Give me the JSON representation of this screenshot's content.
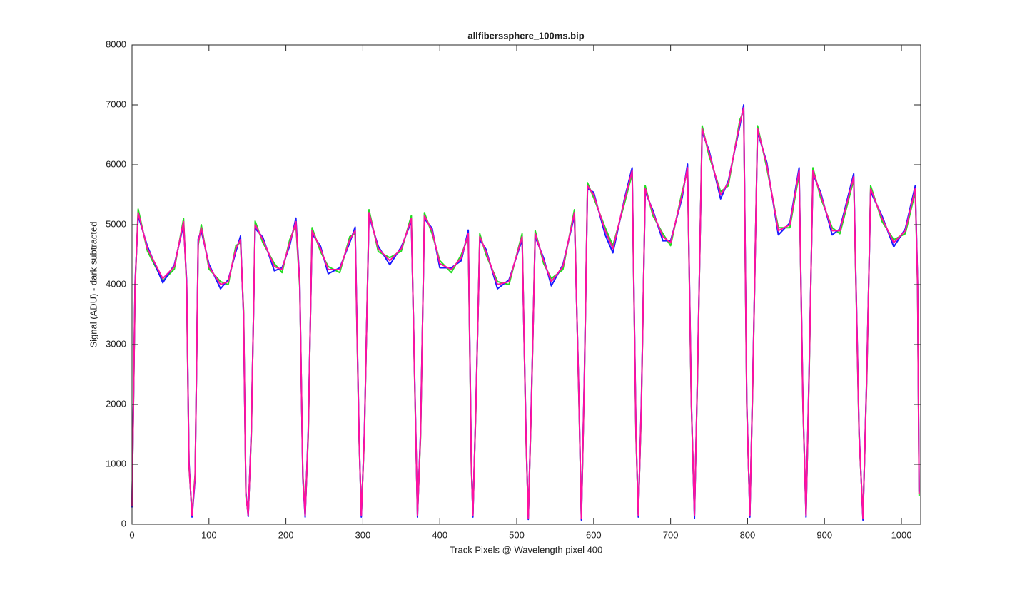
{
  "chart_data": {
    "type": "line",
    "title": "allfiberssphere_100ms.bip",
    "xlabel": "Track Pixels @ Wavelength pixel 400",
    "ylabel": "Signal (ADU) - dark subtracted",
    "xlim": [
      0,
      1025
    ],
    "ylim": [
      0,
      8000
    ],
    "xticks": [
      0,
      100,
      200,
      300,
      400,
      500,
      600,
      700,
      800,
      900,
      1000
    ],
    "yticks": [
      0,
      1000,
      2000,
      3000,
      4000,
      5000,
      6000,
      7000,
      8000
    ],
    "grid": false,
    "x": [
      0,
      4,
      8,
      20,
      40,
      55,
      67,
      71,
      74,
      78,
      82,
      86,
      90,
      100,
      115,
      125,
      135,
      141,
      145,
      148,
      151,
      155,
      160,
      170,
      185,
      195,
      205,
      213,
      218,
      222,
      225,
      229,
      234,
      245,
      255,
      270,
      283,
      290,
      295,
      298,
      302,
      308,
      320,
      335,
      350,
      363,
      368,
      371,
      375,
      380,
      390,
      400,
      415,
      428,
      437,
      441,
      443,
      447,
      452,
      460,
      475,
      490,
      507,
      512,
      515,
      519,
      524,
      535,
      545,
      560,
      575,
      581,
      584,
      588,
      592,
      600,
      615,
      625,
      640,
      650,
      655,
      658,
      662,
      667,
      677,
      690,
      700,
      715,
      722,
      727,
      731,
      735,
      741,
      750,
      765,
      775,
      790,
      795,
      799,
      803,
      807,
      813,
      825,
      840,
      855,
      867,
      872,
      876,
      880,
      885,
      895,
      910,
      920,
      938,
      945,
      950,
      955,
      960,
      975,
      990,
      1005,
      1018,
      1021,
      1023
    ],
    "series": [
      {
        "color": "#22dd22",
        "values": [
          320,
          3950,
          5260,
          4560,
          4060,
          4260,
          5100,
          3950,
          980,
          170,
          830,
          4650,
          5000,
          4260,
          4050,
          4000,
          4650,
          4700,
          3560,
          470,
          170,
          1460,
          5060,
          4700,
          4350,
          4200,
          4750,
          5000,
          3950,
          840,
          180,
          1450,
          4950,
          4550,
          4300,
          4200,
          4800,
          4850,
          1460,
          170,
          1460,
          5250,
          4550,
          4450,
          4560,
          5150,
          1950,
          180,
          1450,
          5200,
          4850,
          4400,
          4200,
          4500,
          4800,
          960,
          170,
          1950,
          4850,
          4500,
          4050,
          4000,
          4850,
          1450,
          130,
          1950,
          4900,
          4350,
          4100,
          4250,
          5250,
          1960,
          130,
          2450,
          5700,
          5450,
          4950,
          4650,
          5350,
          5850,
          1460,
          170,
          1950,
          5650,
          5150,
          4850,
          4650,
          5550,
          5900,
          1960,
          180,
          2450,
          6650,
          6150,
          5550,
          5650,
          6750,
          6900,
          1960,
          170,
          2450,
          6650,
          5950,
          4950,
          4950,
          5850,
          1960,
          180,
          2450,
          5950,
          5450,
          4950,
          4850,
          5750,
          1460,
          130,
          2450,
          5650,
          5050,
          4750,
          4850,
          5550,
          3950,
          470
        ]
      },
      {
        "color": "#1a1aff",
        "values": [
          280,
          4050,
          5150,
          4640,
          4030,
          4330,
          5000,
          4060,
          1050,
          120,
          760,
          4760,
          4900,
          4340,
          3930,
          4080,
          4550,
          4810,
          3450,
          540,
          130,
          1550,
          4940,
          4790,
          4230,
          4280,
          4650,
          5110,
          4040,
          760,
          120,
          1560,
          4850,
          4640,
          4180,
          4280,
          4700,
          4960,
          1540,
          120,
          1550,
          5150,
          4640,
          4330,
          4630,
          5050,
          2060,
          120,
          1560,
          5100,
          4940,
          4280,
          4280,
          4400,
          4910,
          1050,
          120,
          2050,
          4750,
          4590,
          3930,
          4080,
          4750,
          1560,
          80,
          2060,
          4800,
          4440,
          3980,
          4330,
          5150,
          2050,
          70,
          2560,
          5600,
          5540,
          4830,
          4530,
          5430,
          5950,
          1550,
          120,
          2060,
          5550,
          5240,
          4730,
          4730,
          5450,
          6010,
          2050,
          100,
          2560,
          6550,
          6240,
          5430,
          5730,
          6650,
          7000,
          2050,
          120,
          2560,
          6550,
          6040,
          4830,
          5030,
          5950,
          2050,
          120,
          2560,
          5850,
          5540,
          4830,
          4930,
          5850,
          1550,
          70,
          2560,
          5550,
          5140,
          4630,
          4930,
          5650,
          4050,
          540
        ]
      },
      {
        "color": "#ff10a0",
        "values": [
          300,
          4000,
          5200,
          4600,
          4100,
          4300,
          5050,
          4000,
          1000,
          150,
          800,
          4700,
          4950,
          4300,
          4000,
          4050,
          4600,
          4750,
          3500,
          500,
          150,
          1500,
          5000,
          4750,
          4300,
          4250,
          4700,
          5050,
          4000,
          800,
          150,
          1500,
          4900,
          4600,
          4250,
          4250,
          4750,
          4900,
          1500,
          150,
          1500,
          5200,
          4600,
          4400,
          4600,
          5100,
          2000,
          150,
          1500,
          5150,
          4900,
          4350,
          4250,
          4450,
          4850,
          1000,
          150,
          2000,
          4800,
          4550,
          4000,
          4050,
          4800,
          1500,
          100,
          2000,
          4850,
          4400,
          4050,
          4300,
          5200,
          2000,
          100,
          2500,
          5650,
          5500,
          4900,
          4600,
          5400,
          5900,
          1500,
          150,
          2000,
          5600,
          5200,
          4800,
          4700,
          5500,
          5950,
          2000,
          150,
          2500,
          6600,
          6200,
          5500,
          5700,
          6700,
          6950,
          2000,
          150,
          2500,
          6600,
          6000,
          4900,
          5000,
          5900,
          2000,
          150,
          2500,
          5900,
          5500,
          4900,
          4900,
          5800,
          1500,
          100,
          2500,
          5600,
          5100,
          4700,
          4900,
          5600,
          4000,
          500
        ]
      }
    ]
  }
}
